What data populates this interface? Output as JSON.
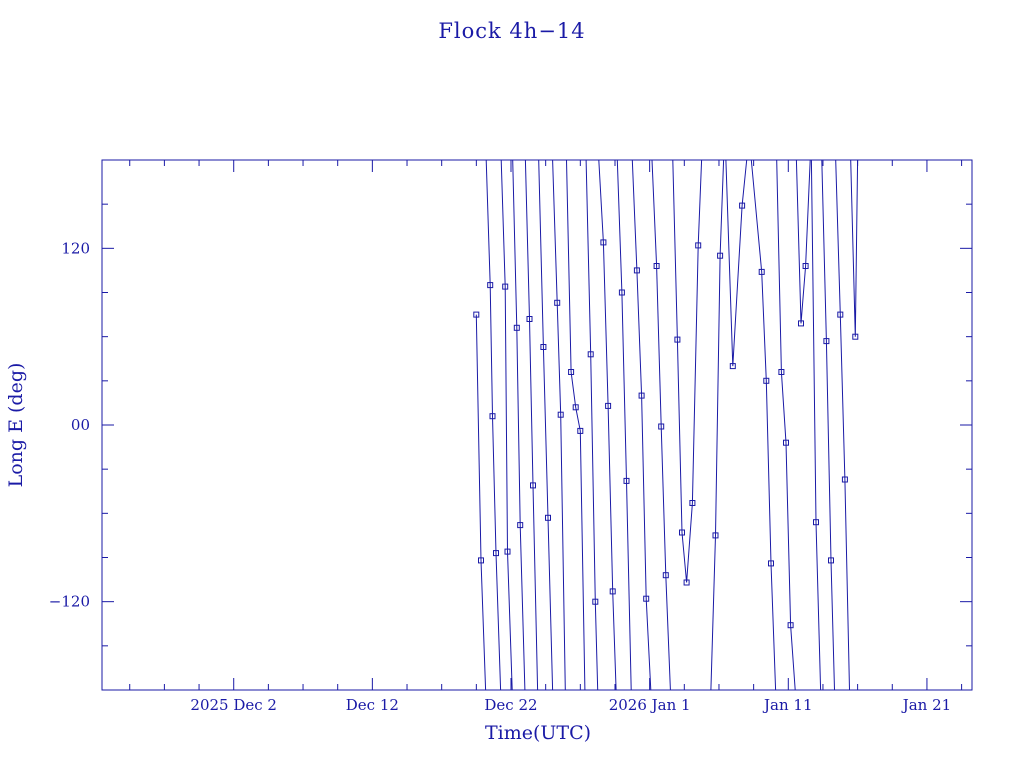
{
  "chart_data": {
    "type": "line",
    "title": "Flock 4h−14",
    "xlabel": "Time(UTC)",
    "ylabel": "Long E (deg)",
    "x_ticks": [
      {
        "date": "2025-12-02",
        "label": "2025 Dec  2"
      },
      {
        "date": "2025-12-12",
        "label": "Dec 12"
      },
      {
        "date": "2025-12-22",
        "label": "Dec 22"
      },
      {
        "date": "2026-01-01",
        "label": "2026 Jan  1"
      },
      {
        "date": "2026-01-11",
        "label": "Jan 11"
      },
      {
        "date": "2026-01-21",
        "label": "Jan 21"
      }
    ],
    "y_ticks": [
      {
        "value": 120,
        "label": "120"
      },
      {
        "value": 0,
        "label": "00"
      },
      {
        "value": -120,
        "label": "−120"
      }
    ],
    "xlim": [
      "2025-11-22T12:00",
      "2026-01-24T06:00"
    ],
    "ylim": [
      -180,
      180
    ],
    "grid": false,
    "line_color": "#1a1aa6",
    "marker": "square",
    "series": [
      {
        "points": [
          [
            "2025-12-19T12:00",
            75
          ],
          [
            "2025-12-19T20:00",
            -92
          ],
          [
            "2025-12-20T04:00",
            -180
          ]
        ]
      },
      {
        "points": [
          [
            "2025-12-20T05:00",
            180
          ],
          [
            "2025-12-20T12:00",
            95
          ],
          [
            "2025-12-20T16:00",
            6
          ],
          [
            "2025-12-20T22:00",
            -87
          ],
          [
            "2025-12-21T06:00",
            -180
          ]
        ]
      },
      {
        "points": [
          [
            "2025-12-21T07:00",
            180
          ],
          [
            "2025-12-21T14:00",
            94
          ],
          [
            "2025-12-21T18:00",
            -86
          ],
          [
            "2025-12-22T02:00",
            -180
          ]
        ]
      },
      {
        "points": [
          [
            "2025-12-22T03:00",
            180
          ],
          [
            "2025-12-22T10:00",
            66
          ],
          [
            "2025-12-22T16:00",
            -68
          ],
          [
            "2025-12-23T00:00",
            -180
          ]
        ]
      },
      {
        "points": [
          [
            "2025-12-23T01:00",
            180
          ],
          [
            "2025-12-23T08:00",
            72
          ],
          [
            "2025-12-23T14:00",
            -41
          ],
          [
            "2025-12-23T22:00",
            -180
          ]
        ]
      },
      {
        "points": [
          [
            "2025-12-24T00:00",
            180
          ],
          [
            "2025-12-24T08:00",
            53
          ],
          [
            "2025-12-24T16:00",
            -63
          ],
          [
            "2025-12-25T00:00",
            -180
          ]
        ]
      },
      {
        "points": [
          [
            "2025-12-25T00:00",
            180
          ],
          [
            "2025-12-25T08:00",
            83
          ],
          [
            "2025-12-25T14:00",
            7
          ],
          [
            "2025-12-25T22:00",
            -180
          ]
        ]
      },
      {
        "points": [
          [
            "2025-12-26T00:00",
            180
          ],
          [
            "2025-12-26T08:00",
            36
          ],
          [
            "2025-12-26T16:00",
            12
          ],
          [
            "2025-12-27T00:00",
            -4
          ],
          [
            "2025-12-27T08:00",
            -180
          ]
        ]
      },
      {
        "points": [
          [
            "2025-12-27T10:00",
            180
          ],
          [
            "2025-12-27T18:00",
            48
          ],
          [
            "2025-12-28T02:00",
            -120
          ],
          [
            "2025-12-28T06:00",
            -180
          ]
        ]
      },
      {
        "points": [
          [
            "2025-12-28T08:00",
            180
          ],
          [
            "2025-12-28T16:00",
            124
          ],
          [
            "2025-12-29T00:00",
            13
          ],
          [
            "2025-12-29T08:00",
            -113
          ],
          [
            "2025-12-29T14:00",
            -180
          ]
        ]
      },
      {
        "points": [
          [
            "2025-12-29T16:00",
            180
          ],
          [
            "2025-12-30T00:00",
            90
          ],
          [
            "2025-12-30T08:00",
            -38
          ],
          [
            "2025-12-30T16:00",
            -180
          ]
        ]
      },
      {
        "points": [
          [
            "2025-12-30T18:00",
            180
          ],
          [
            "2025-12-31T02:00",
            105
          ],
          [
            "2025-12-31T10:00",
            20
          ],
          [
            "2025-12-31T18:00",
            -118
          ],
          [
            "2026-01-01T02:00",
            -180
          ]
        ]
      },
      {
        "points": [
          [
            "2026-01-01T04:00",
            180
          ],
          [
            "2026-01-01T12:00",
            108
          ],
          [
            "2026-01-01T20:00",
            -1
          ],
          [
            "2026-01-02T04:00",
            -102
          ],
          [
            "2026-01-02T12:00",
            -180
          ]
        ]
      },
      {
        "points": [
          [
            "2026-01-02T16:00",
            180
          ],
          [
            "2026-01-03T00:00",
            58
          ],
          [
            "2026-01-03T08:00",
            -73
          ],
          [
            "2026-01-03T16:00",
            -107
          ],
          [
            "2026-01-04T02:00",
            -53
          ],
          [
            "2026-01-04T12:00",
            122
          ],
          [
            "2026-01-04T18:00",
            180
          ]
        ]
      },
      {
        "points": [
          [
            "2026-01-05T10:00",
            -180
          ],
          [
            "2026-01-05T18:00",
            -75
          ],
          [
            "2026-01-06T02:00",
            115
          ],
          [
            "2026-01-06T08:00",
            180
          ]
        ]
      },
      {
        "points": [
          [
            "2026-01-06T12:00",
            180
          ],
          [
            "2026-01-07T00:00",
            40
          ],
          [
            "2026-01-07T16:00",
            149
          ],
          [
            "2026-01-08T00:00",
            180
          ]
        ]
      },
      {
        "points": [
          [
            "2026-01-08T08:00",
            180
          ],
          [
            "2026-01-09T02:00",
            104
          ],
          [
            "2026-01-09T10:00",
            30
          ],
          [
            "2026-01-09T18:00",
            -94
          ],
          [
            "2026-01-10T02:00",
            -180
          ]
        ]
      },
      {
        "points": [
          [
            "2026-01-10T04:00",
            180
          ],
          [
            "2026-01-10T12:00",
            36
          ],
          [
            "2026-01-10T20:00",
            -12
          ],
          [
            "2026-01-11T04:00",
            -136
          ],
          [
            "2026-01-11T12:00",
            -180
          ]
        ]
      },
      {
        "points": [
          [
            "2026-01-11T14:00",
            180
          ],
          [
            "2026-01-11T22:00",
            69
          ],
          [
            "2026-01-12T06:00",
            108
          ],
          [
            "2026-01-12T14:00",
            180
          ]
        ]
      },
      {
        "points": [
          [
            "2026-01-12T16:00",
            180
          ],
          [
            "2026-01-13T00:00",
            -66
          ],
          [
            "2026-01-13T08:00",
            -180
          ]
        ]
      },
      {
        "points": [
          [
            "2026-01-13T10:00",
            180
          ],
          [
            "2026-01-13T18:00",
            57
          ],
          [
            "2026-01-14T02:00",
            -92
          ],
          [
            "2026-01-14T08:00",
            -180
          ]
        ]
      },
      {
        "points": [
          [
            "2026-01-14T10:00",
            180
          ],
          [
            "2026-01-14T18:00",
            75
          ],
          [
            "2026-01-15T02:00",
            -37
          ],
          [
            "2026-01-15T10:00",
            -180
          ]
        ]
      },
      {
        "points": [
          [
            "2026-01-15T12:00",
            180
          ],
          [
            "2026-01-15T20:00",
            60
          ],
          [
            "2026-01-16T00:00",
            180
          ]
        ]
      }
    ]
  }
}
